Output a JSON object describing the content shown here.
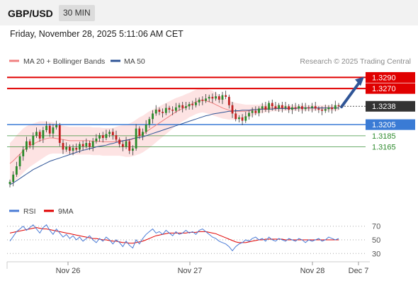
{
  "header": {
    "symbol": "GBP/USD",
    "interval": "30 MIN"
  },
  "timestamp": "Friday, November 28, 2025 5:11:06 AM CET",
  "credit": "Research © 2025 Trading Central",
  "colors": {
    "resistance": "#e00000",
    "support_pivot": "#3a7bd5",
    "support": "#2e8b2e",
    "ma20": "#f08080",
    "ma50": "#2f5597",
    "bands_fill": "#fde3e3",
    "candle_up": "#2a8a2a",
    "candle_down": "#c02020",
    "last_price": "#333333",
    "rsi": "#4a7bd6",
    "rsi_ma": "#e00000",
    "arrow": "#2f5597"
  },
  "chart_data": [
    {
      "type": "candlestick",
      "legend": [
        {
          "label": "MA 20 + Bollinger Bands",
          "icon": "ma20-swatch"
        },
        {
          "label": "MA 50",
          "icon": "ma50-swatch"
        }
      ],
      "x_ticks": [
        "Nov 26",
        "Nov 27",
        "Nov 28",
        "Dec 7"
      ],
      "price_range": [
        1.3088,
        1.3302
      ],
      "last_price": "1.3238",
      "levels": [
        {
          "value": "1.3290",
          "kind": "resistance"
        },
        {
          "value": "1.3270",
          "kind": "resistance"
        },
        {
          "value": "1.3205",
          "kind": "pivot"
        },
        {
          "value": "1.3185",
          "kind": "support"
        },
        {
          "value": "1.3165",
          "kind": "support"
        }
      ],
      "forecast_arrow": {
        "from": 1.3237,
        "to": 1.329,
        "direction": "up"
      },
      "closes": [
        1.3102,
        1.3115,
        1.313,
        1.3148,
        1.316,
        1.3175,
        1.3168,
        1.3185,
        1.3192,
        1.318,
        1.3195,
        1.3203,
        1.3189,
        1.32,
        1.3204,
        1.3172,
        1.316,
        1.3165,
        1.3158,
        1.3163,
        1.316,
        1.317,
        1.3166,
        1.3172,
        1.3165,
        1.3175,
        1.318,
        1.3186,
        1.3181,
        1.3188,
        1.3192,
        1.3186,
        1.3178,
        1.317,
        1.3165,
        1.3175,
        1.3158,
        1.3162,
        1.3198,
        1.3185,
        1.3192,
        1.3205,
        1.3215,
        1.3225,
        1.3232,
        1.3228,
        1.3226,
        1.3235,
        1.3232,
        1.323,
        1.3236,
        1.324,
        1.3235,
        1.3238,
        1.3242,
        1.324,
        1.3245,
        1.325,
        1.3248,
        1.3252,
        1.3255,
        1.3252,
        1.3256,
        1.325,
        1.3258,
        1.3255,
        1.324,
        1.3225,
        1.3215,
        1.3218,
        1.3212,
        1.322,
        1.3226,
        1.323,
        1.3226,
        1.3234,
        1.3238,
        1.3232,
        1.3244,
        1.3238,
        1.3234,
        1.324,
        1.3235,
        1.3238,
        1.3232,
        1.3236,
        1.3234,
        1.3238,
        1.3233,
        1.3236,
        1.3235,
        1.3238,
        1.3234,
        1.3232,
        1.323,
        1.3233,
        1.3236,
        1.3233,
        1.324,
        1.3238
      ],
      "ma20": [
        1.3135,
        1.314,
        1.3146,
        1.3152,
        1.3158,
        1.3163,
        1.3167,
        1.317,
        1.3173,
        1.3176,
        1.3178,
        1.318,
        1.3181,
        1.3181,
        1.318,
        1.3179,
        1.3178,
        1.3177,
        1.3176,
        1.3176,
        1.3176,
        1.3176,
        1.3176,
        1.3176,
        1.3176,
        1.3175,
        1.3175,
        1.3175,
        1.3174,
        1.3174,
        1.3174,
        1.3174,
        1.3175,
        1.3176,
        1.3176,
        1.3176,
        1.3177,
        1.3179,
        1.3182,
        1.3185,
        1.3188,
        1.3192,
        1.3196,
        1.32,
        1.3204,
        1.3208,
        1.3212,
        1.3216,
        1.322,
        1.3224,
        1.3228,
        1.3231,
        1.3234,
        1.3237,
        1.324,
        1.3243,
        1.3246,
        1.3248,
        1.3249,
        1.3248,
        1.3246,
        1.3244,
        1.3241,
        1.3238,
        1.3235,
        1.3233,
        1.3231,
        1.323,
        1.3229,
        1.3229,
        1.3229,
        1.3229,
        1.323,
        1.3231,
        1.3232,
        1.3233,
        1.3234,
        1.3234,
        1.3235,
        1.3235,
        1.3235,
        1.3235,
        1.3235,
        1.3235,
        1.3235,
        1.3235,
        1.3235,
        1.3235,
        1.3235,
        1.3235,
        1.3235,
        1.3235,
        1.3235,
        1.3235,
        1.3235,
        1.3235,
        1.3235,
        1.3235,
        1.3235,
        1.3235
      ],
      "ma50": [
        1.3097,
        1.31,
        1.3104,
        1.3108,
        1.3112,
        1.3116,
        1.312,
        1.3124,
        1.3127,
        1.313,
        1.3133,
        1.3136,
        1.3139,
        1.3141,
        1.3143,
        1.3145,
        1.3147,
        1.3149,
        1.3151,
        1.3153,
        1.3155,
        1.3157,
        1.3159,
        1.316,
        1.3162,
        1.3163,
        1.3165,
        1.3166,
        1.3167,
        1.3168,
        1.317,
        1.3171,
        1.3173,
        1.3174,
        1.3176,
        1.3177,
        1.3178,
        1.318,
        1.3181,
        1.3182,
        1.3183,
        1.3185,
        1.3187,
        1.3189,
        1.3191,
        1.3193,
        1.3195,
        1.3197,
        1.3199,
        1.3201,
        1.3203,
        1.3205,
        1.3207,
        1.3209,
        1.3211,
        1.3213,
        1.3215,
        1.3217,
        1.3219,
        1.3221,
        1.3222,
        1.3224,
        1.3225,
        1.3226,
        1.3227,
        1.3228,
        1.3229,
        1.3229,
        1.323,
        1.323,
        1.3231,
        1.3231,
        1.3231,
        1.3232,
        1.3232,
        1.3232,
        1.3233,
        1.3233,
        1.3233,
        1.3233,
        1.3234,
        1.3234,
        1.3234,
        1.3234,
        1.3234,
        1.3234,
        1.3234,
        1.3235,
        1.3235,
        1.3235,
        1.3235,
        1.3235,
        1.3235,
        1.3235,
        1.3235,
        1.3235,
        1.3235,
        1.3235,
        1.3235,
        1.3235
      ],
      "band_width": [
        0.0037,
        0.0038,
        0.004,
        0.004,
        0.004,
        0.0039,
        0.0038,
        0.0037,
        0.0036,
        0.0035,
        0.0033,
        0.0031,
        0.0029,
        0.0028,
        0.0027,
        0.0026,
        0.0025,
        0.0025,
        0.0025,
        0.0025,
        0.0025,
        0.0025,
        0.0025,
        0.0025,
        0.0025,
        0.0025,
        0.0025,
        0.0025,
        0.0025,
        0.0025,
        0.0025,
        0.0025,
        0.0026,
        0.0027,
        0.0028,
        0.0029,
        0.003,
        0.0031,
        0.0032,
        0.0033,
        0.0033,
        0.0033,
        0.0033,
        0.0032,
        0.0031,
        0.003,
        0.0029,
        0.0028,
        0.0027,
        0.0026,
        0.0025,
        0.0024,
        0.0023,
        0.0023,
        0.0022,
        0.0022,
        0.0022,
        0.0022,
        0.0022,
        0.0022,
        0.0022,
        0.0022,
        0.0021,
        0.002,
        0.0019,
        0.0018,
        0.0017,
        0.0016,
        0.0015,
        0.0014,
        0.0013,
        0.0012,
        0.0011,
        0.001,
        0.0009,
        0.0008,
        0.0008,
        0.0007,
        0.0007,
        0.0006,
        0.0006,
        0.0006,
        0.0005,
        0.0005,
        0.0005,
        0.0005,
        0.0005,
        0.0005,
        0.0005,
        0.0005,
        0.0005,
        0.0005,
        0.0005,
        0.0005,
        0.0005,
        0.0005,
        0.0005,
        0.0005,
        0.0005,
        0.0005
      ]
    },
    {
      "type": "line",
      "legend": [
        {
          "label": "RSI",
          "icon": "rsi-swatch"
        },
        {
          "label": "9MA",
          "icon": "rsi-ma-swatch"
        }
      ],
      "y_ticks": [
        "70",
        "50",
        "30"
      ],
      "y_range": [
        22,
        78
      ],
      "rsi": [
        48,
        55,
        62,
        66,
        70,
        64,
        68,
        72,
        66,
        60,
        68,
        72,
        64,
        58,
        66,
        60,
        54,
        58,
        52,
        56,
        50,
        54,
        48,
        52,
        56,
        50,
        46,
        52,
        48,
        54,
        50,
        44,
        50,
        46,
        40,
        48,
        42,
        38,
        50,
        44,
        52,
        58,
        62,
        66,
        60,
        62,
        58,
        64,
        60,
        56,
        62,
        58,
        60,
        64,
        60,
        62,
        58,
        64,
        66,
        62,
        58,
        54,
        52,
        48,
        46,
        44,
        40,
        34,
        40,
        44,
        46,
        50,
        48,
        52,
        54,
        50,
        52,
        48,
        54,
        50,
        48,
        52,
        50,
        48,
        52,
        50,
        48,
        52,
        50,
        46,
        50,
        48,
        50,
        52,
        48,
        50,
        54,
        52,
        50,
        52
      ],
      "rsi_ma": [
        60,
        61,
        62,
        63,
        64,
        65,
        66,
        67,
        68,
        67,
        66,
        66,
        65,
        64,
        63,
        62,
        61,
        60,
        59,
        58,
        57,
        56,
        55,
        54,
        53,
        52,
        52,
        51,
        50,
        50,
        49,
        48,
        48,
        47,
        46,
        46,
        45,
        45,
        46,
        47,
        48,
        50,
        52,
        54,
        56,
        57,
        58,
        59,
        60,
        60,
        60,
        60,
        60,
        60,
        61,
        61,
        61,
        62,
        62,
        62,
        61,
        60,
        59,
        57,
        55,
        53,
        51,
        49,
        47,
        46,
        46,
        46,
        47,
        48,
        49,
        50,
        50,
        51,
        51,
        51,
        51,
        51,
        51,
        50,
        50,
        50,
        50,
        50,
        50,
        50,
        50,
        50,
        50,
        50,
        50,
        50,
        50,
        50,
        50,
        50
      ]
    }
  ]
}
